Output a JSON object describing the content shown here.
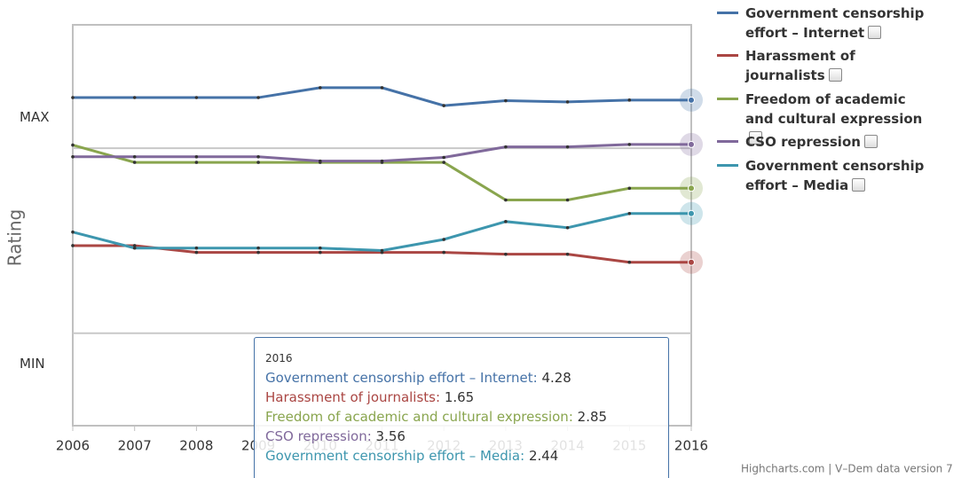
{
  "chart_data": {
    "type": "line",
    "y_axis_title": "Rating",
    "credits": "Highcharts.com | V–Dem data version 7",
    "x": [
      2006,
      2007,
      2008,
      2009,
      2010,
      2011,
      2012,
      2013,
      2014,
      2015,
      2016
    ],
    "xlim": [
      2006,
      2016
    ],
    "xticks": [
      2006,
      2007,
      2008,
      2009,
      2010,
      2011,
      2012,
      2013,
      2014,
      2015,
      2016
    ],
    "ylim": [
      -1,
      5.5
    ],
    "yticks": [
      {
        "value": 0,
        "label": "MIN"
      },
      {
        "value": 4,
        "label": "MAX"
      }
    ],
    "plot_lines": [
      0.5,
      3.5
    ],
    "legend": "right",
    "series": [
      {
        "name": "Government censorship effort – Internet",
        "color": "#4572a7",
        "values": [
          4.32,
          4.32,
          4.32,
          4.32,
          4.48,
          4.48,
          4.19,
          4.27,
          4.25,
          4.28,
          4.28
        ]
      },
      {
        "name": "Harassment of journalists",
        "color": "#aa4643",
        "values": [
          1.92,
          1.92,
          1.81,
          1.81,
          1.81,
          1.81,
          1.81,
          1.78,
          1.78,
          1.65,
          1.65
        ]
      },
      {
        "name": "Freedom of academic and cultural expression",
        "color": "#89a54e",
        "values": [
          3.55,
          3.27,
          3.27,
          3.27,
          3.27,
          3.27,
          3.27,
          2.66,
          2.66,
          2.85,
          2.85
        ]
      },
      {
        "name": "CSO repression",
        "color": "#80699b",
        "values": [
          3.36,
          3.36,
          3.36,
          3.36,
          3.29,
          3.29,
          3.35,
          3.52,
          3.52,
          3.56,
          3.56
        ]
      },
      {
        "name": "Government censorship effort – Media",
        "color": "#3d96ae",
        "values": [
          2.14,
          1.88,
          1.88,
          1.88,
          1.88,
          1.84,
          2.02,
          2.31,
          2.21,
          2.44,
          2.44
        ]
      }
    ],
    "tooltip_index": 10
  }
}
